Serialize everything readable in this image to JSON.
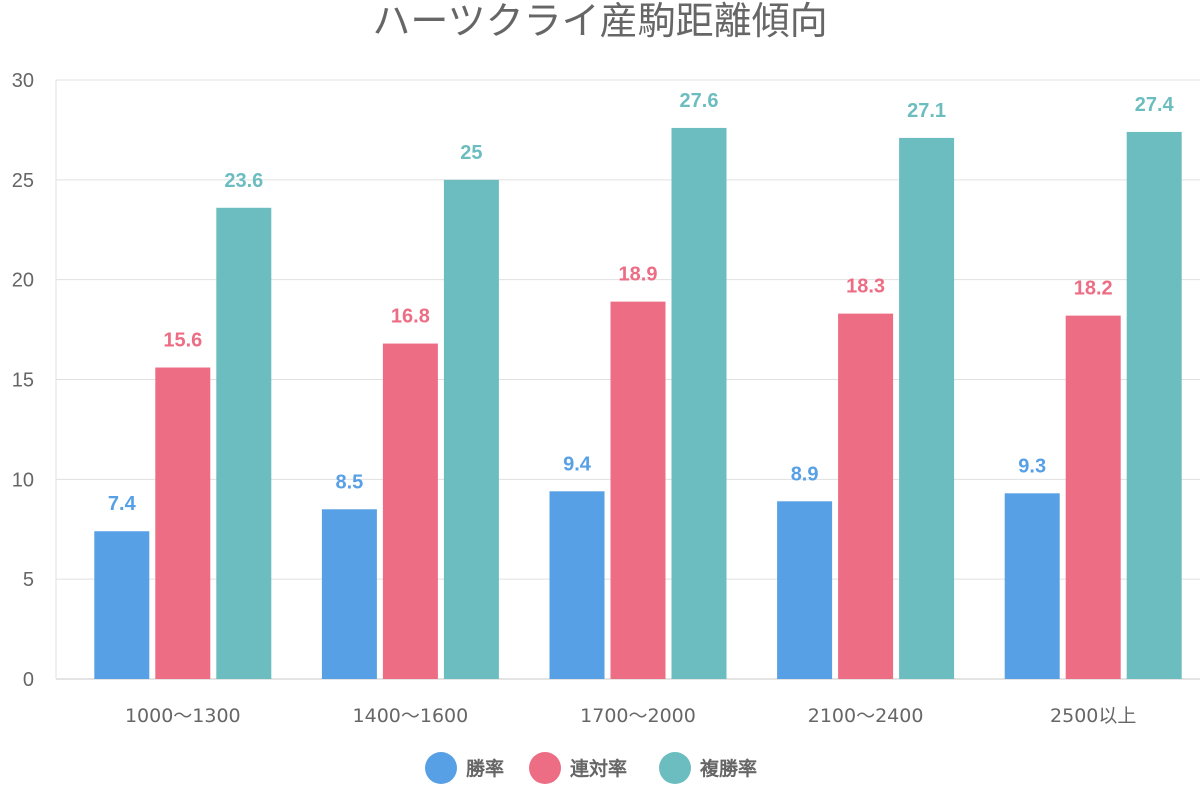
{
  "chart_data": {
    "type": "bar",
    "title": "ハーツクライ産駒距離傾向",
    "categories": [
      "1000〜1300",
      "1400〜1600",
      "1700〜2000",
      "2100〜2400",
      "2500以上"
    ],
    "series": [
      {
        "name": "勝率",
        "color": "#57a0e5",
        "values": [
          7.4,
          8.5,
          9.4,
          8.9,
          9.3
        ]
      },
      {
        "name": "連対率",
        "color": "#ed6d85",
        "values": [
          15.6,
          16.8,
          18.9,
          18.3,
          18.2
        ]
      },
      {
        "name": "複勝率",
        "color": "#6cbdbf",
        "values": [
          23.6,
          25,
          27.6,
          27.1,
          27.4
        ]
      }
    ],
    "xlabel": "",
    "ylabel": "",
    "ylim": [
      0,
      30
    ],
    "yticks": [
      0,
      5,
      10,
      15,
      20,
      25,
      30
    ],
    "grid": true,
    "legend": "bottom-center",
    "gridColor": "#e0e0e0",
    "axisColor": "#c8c8c8"
  }
}
